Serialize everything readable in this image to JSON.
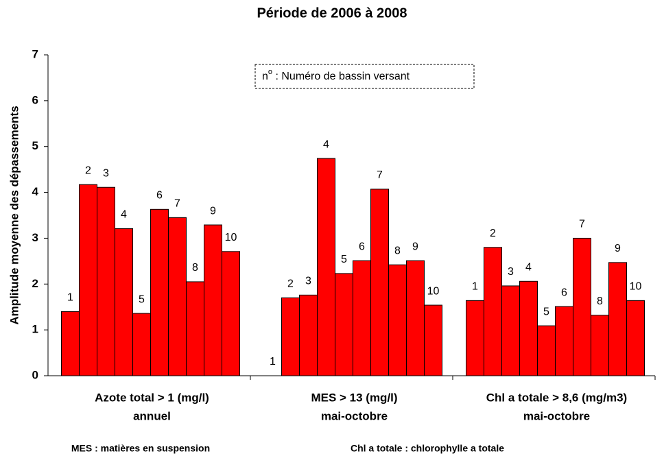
{
  "chart_data": {
    "type": "bar",
    "title": "Période de 2006 à 2008",
    "y_label": "Amplitude moyenne des dépassements",
    "categories": [
      [
        "Azote total > 1 (mg/l)",
        "annuel"
      ],
      [
        "MES > 13 (mg/l)",
        "mai-octobre"
      ],
      [
        "Chl a totale > 8,6 (mg/m3)",
        "mai-octobre"
      ]
    ],
    "series": [
      {
        "name": "1",
        "color": "#ff0000",
        "values": [
          1.4,
          0,
          1.64
        ]
      },
      {
        "name": "2",
        "color": "#ff0000",
        "values": [
          4.17,
          1.7,
          2.8
        ]
      },
      {
        "name": "3",
        "color": "#ff0000",
        "values": [
          4.11,
          1.76,
          1.96
        ]
      },
      {
        "name": "4",
        "color": "#ff0000",
        "values": [
          3.21,
          4.74,
          2.06
        ]
      },
      {
        "name": "5",
        "color": "#ff0000",
        "values": [
          1.36,
          2.23,
          1.09
        ]
      },
      {
        "name": "6",
        "color": "#ff0000",
        "values": [
          3.63,
          2.51,
          1.51
        ]
      },
      {
        "name": "7",
        "color": "#ff0000",
        "values": [
          3.45,
          4.07,
          3.0
        ]
      },
      {
        "name": "8",
        "color": "#ff0000",
        "values": [
          2.05,
          2.42,
          1.32
        ]
      },
      {
        "name": "9",
        "color": "#ff0000",
        "values": [
          3.29,
          2.51,
          2.47
        ]
      },
      {
        "name": "10",
        "color": "#ff0000",
        "values": [
          2.71,
          1.54,
          1.64
        ]
      }
    ],
    "ylim": [
      0,
      7
    ],
    "yticks": [
      0,
      1,
      2,
      3,
      4,
      5,
      6,
      7
    ],
    "grid": false,
    "annotation": {
      "prefix": "n",
      "sup": "o",
      "text": " : Numéro de bassin versant"
    },
    "footnotes": [
      "MES : matières en suspension",
      "Chl a totale : chlorophylle a totale"
    ]
  }
}
